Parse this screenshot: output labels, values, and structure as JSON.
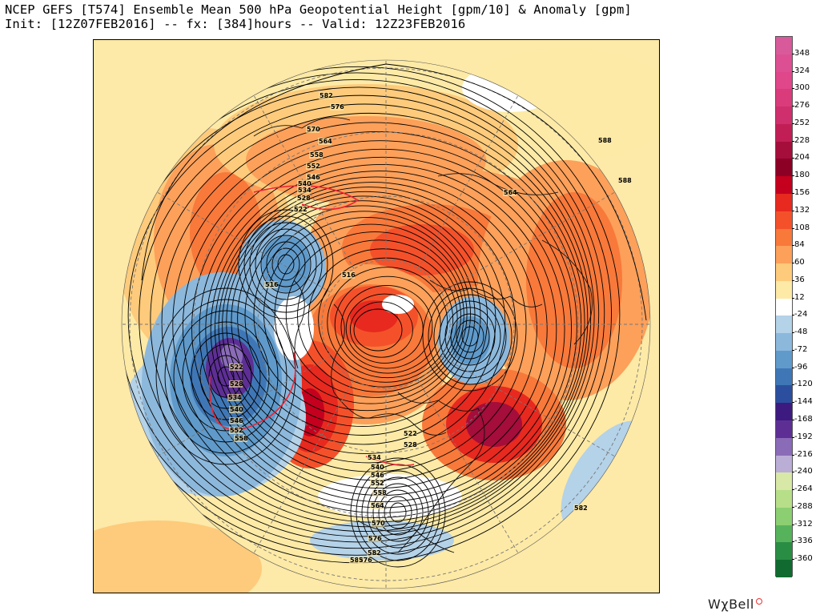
{
  "header": {
    "line1": "NCEP GEFS [T574] Ensemble Mean 500 hPa Geopotential Height [gpm/10] & Anomaly [gpm]",
    "line2": "Init: [12Z07FEB2016] -- fx: [384]hours -- Valid: 12Z23FEB2016"
  },
  "colorbar": {
    "levels": [
      {
        "label": "348",
        "color": "#d85a9a"
      },
      {
        "label": "324",
        "color": "#dd4f93"
      },
      {
        "label": "300",
        "color": "#e0468a"
      },
      {
        "label": "276",
        "color": "#d93b7b"
      },
      {
        "label": "252",
        "color": "#cf2f6c"
      },
      {
        "label": "228",
        "color": "#c21e56"
      },
      {
        "label": "204",
        "color": "#a50d3b"
      },
      {
        "label": "180",
        "color": "#8c0026"
      },
      {
        "label": "156",
        "color": "#c4001e"
      },
      {
        "label": "132",
        "color": "#e7291f"
      },
      {
        "label": "108",
        "color": "#f4512b"
      },
      {
        "label": "84",
        "color": "#f8793a"
      },
      {
        "label": "60",
        "color": "#fca05a"
      },
      {
        "label": "36",
        "color": "#fdcb7b"
      },
      {
        "label": "12",
        "color": "#fdeaa6"
      },
      {
        "label": "-24",
        "color": "#ffffff"
      },
      {
        "label": "-48",
        "color": "#b4d2e8"
      },
      {
        "label": "-72",
        "color": "#8cb8dc"
      },
      {
        "label": "-96",
        "color": "#5f9acb"
      },
      {
        "label": "-120",
        "color": "#3f77b6"
      },
      {
        "label": "-144",
        "color": "#2b4f9e"
      },
      {
        "label": "-168",
        "color": "#3c1a80"
      },
      {
        "label": "-192",
        "color": "#5d2f95"
      },
      {
        "label": "-216",
        "color": "#8a6bb8"
      },
      {
        "label": "-240",
        "color": "#bbaed6"
      },
      {
        "label": "-264",
        "color": "#d8e8a6"
      },
      {
        "label": "-288",
        "color": "#b7de89"
      },
      {
        "label": "-312",
        "color": "#8ccf72"
      },
      {
        "label": "-336",
        "color": "#57b35b"
      },
      {
        "label": "-360",
        "color": "#2a8d44"
      },
      {
        "label": "",
        "color": "#116b30"
      }
    ]
  },
  "contour_labels": [
    "582",
    "576",
    "570",
    "564",
    "558",
    "552",
    "546",
    "540",
    "534",
    "528",
    "522",
    "516",
    "516",
    "522",
    "528",
    "534",
    "540",
    "546",
    "552",
    "558",
    "522",
    "528",
    "534",
    "540",
    "546",
    "552",
    "558",
    "564",
    "570",
    "576",
    "582",
    "588",
    "588",
    "564",
    "582",
    "582",
    "576"
  ],
  "brand": "WχBell"
}
